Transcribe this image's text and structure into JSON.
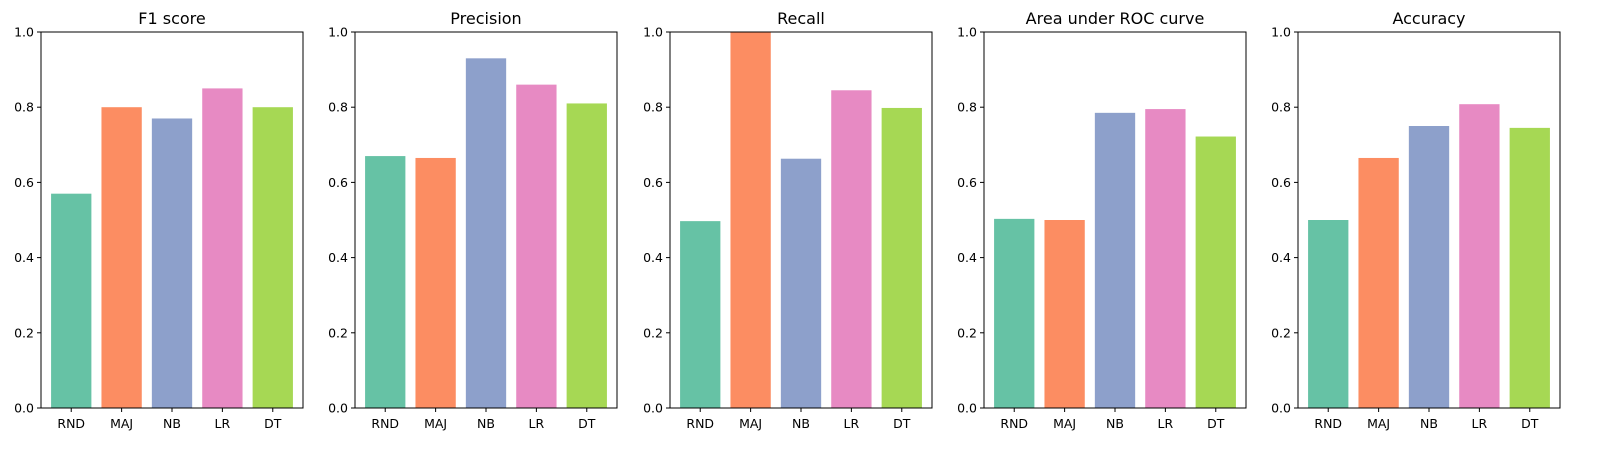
{
  "chart_data": [
    {
      "type": "bar",
      "title": "F1 score",
      "categories": [
        "RND",
        "MAJ",
        "NB",
        "LR",
        "DT"
      ],
      "values": [
        0.57,
        0.8,
        0.77,
        0.85,
        0.8
      ],
      "ylim": [
        0,
        1.0
      ],
      "yticks": [
        "0.0",
        "0.2",
        "0.4",
        "0.6",
        "0.8",
        "1.0"
      ],
      "grid": false
    },
    {
      "type": "bar",
      "title": "Precision",
      "categories": [
        "RND",
        "MAJ",
        "NB",
        "LR",
        "DT"
      ],
      "values": [
        0.67,
        0.665,
        0.93,
        0.86,
        0.81
      ],
      "ylim": [
        0,
        1.0
      ],
      "yticks": [
        "0.0",
        "0.2",
        "0.4",
        "0.6",
        "0.8",
        "1.0"
      ],
      "grid": false
    },
    {
      "type": "bar",
      "title": "Recall",
      "categories": [
        "RND",
        "MAJ",
        "NB",
        "LR",
        "DT"
      ],
      "values": [
        0.497,
        1.0,
        0.663,
        0.845,
        0.798
      ],
      "ylim": [
        0,
        1.0
      ],
      "yticks": [
        "0.0",
        "0.2",
        "0.4",
        "0.6",
        "0.8",
        "1.0"
      ],
      "grid": false
    },
    {
      "type": "bar",
      "title": "Area under ROC curve",
      "categories": [
        "RND",
        "MAJ",
        "NB",
        "LR",
        "DT"
      ],
      "values": [
        0.503,
        0.5,
        0.785,
        0.795,
        0.722
      ],
      "ylim": [
        0,
        1.0
      ],
      "yticks": [
        "0.0",
        "0.2",
        "0.4",
        "0.6",
        "0.8",
        "1.0"
      ],
      "grid": false
    },
    {
      "type": "bar",
      "title": "Accuracy",
      "categories": [
        "RND",
        "MAJ",
        "NB",
        "LR",
        "DT"
      ],
      "values": [
        0.5,
        0.665,
        0.75,
        0.808,
        0.745
      ],
      "ylim": [
        0,
        1.0
      ],
      "yticks": [
        "0.0",
        "0.2",
        "0.4",
        "0.6",
        "0.8",
        "1.0"
      ],
      "grid": false
    }
  ],
  "colors": [
    "#66c2a5",
    "#fc8d62",
    "#8da0cb",
    "#e78ac3",
    "#a6d854"
  ]
}
